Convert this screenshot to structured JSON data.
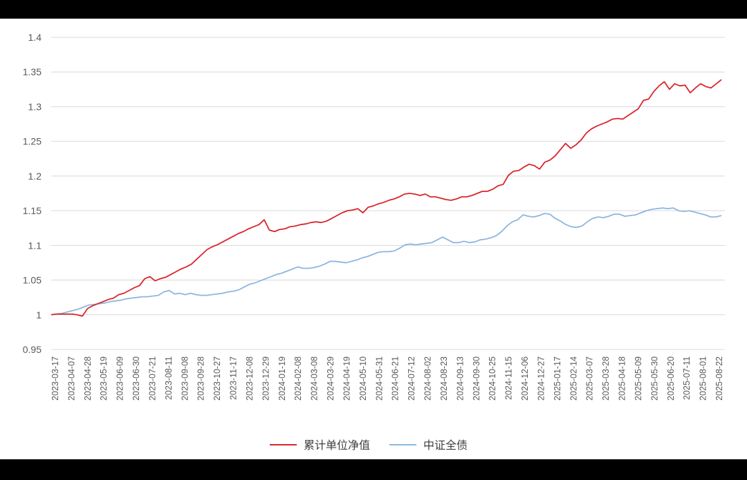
{
  "chart_data": {
    "type": "line",
    "title": "",
    "xlabel": "",
    "ylabel": "",
    "ylim": [
      0.95,
      1.4
    ],
    "y_ticks": [
      "1.4",
      "1.35",
      "1.3",
      "1.25",
      "1.2",
      "1.15",
      "1.1",
      "1.05",
      "1",
      "0.95"
    ],
    "grid": true,
    "legend_position": "bottom",
    "x_tick_labels": [
      "2023-03-17",
      "2023-04-07",
      "2023-04-28",
      "2023-05-19",
      "2023-06-09",
      "2023-06-30",
      "2023-07-21",
      "2023-08-11",
      "2023-09-08",
      "2023-09-28",
      "2023-10-27",
      "2023-11-17",
      "2023-12-08",
      "2023-12-29",
      "2024-01-19",
      "2024-02-08",
      "2024-03-08",
      "2024-03-29",
      "2024-04-19",
      "2024-05-10",
      "2024-05-31",
      "2024-06-21",
      "2024-07-12",
      "2024-08-02",
      "2024-08-23",
      "2024-09-13",
      "2024-09-30",
      "2024-10-25",
      "2024-11-15",
      "2024-12-06",
      "2024-12-27",
      "2025-01-17",
      "2025-02-14",
      "2025-03-07",
      "2025-03-28",
      "2025-04-18",
      "2025-05-09",
      "2025-05-30",
      "2025-06-20",
      "2025-07-11",
      "2025-08-01",
      "2025-08-22"
    ],
    "series": [
      {
        "name": "累计单位净值",
        "color": "#d9252c",
        "values": [
          1.0,
          1.001,
          1.001,
          1.001,
          1.001,
          1.0,
          0.998,
          1.009,
          1.013,
          1.016,
          1.019,
          1.022,
          1.024,
          1.029,
          1.031,
          1.035,
          1.039,
          1.042,
          1.052,
          1.055,
          1.049,
          1.052,
          1.054,
          1.058,
          1.062,
          1.066,
          1.069,
          1.073,
          1.08,
          1.087,
          1.094,
          1.098,
          1.101,
          1.105,
          1.109,
          1.113,
          1.117,
          1.12,
          1.124,
          1.127,
          1.13,
          1.137,
          1.122,
          1.12,
          1.123,
          1.124,
          1.127,
          1.128,
          1.13,
          1.131,
          1.133,
          1.134,
          1.133,
          1.135,
          1.139,
          1.143,
          1.147,
          1.15,
          1.151,
          1.153,
          1.147,
          1.155,
          1.157,
          1.16,
          1.162,
          1.165,
          1.167,
          1.17,
          1.174,
          1.175,
          1.174,
          1.172,
          1.174,
          1.17,
          1.17,
          1.168,
          1.166,
          1.165,
          1.167,
          1.17,
          1.17,
          1.172,
          1.175,
          1.178,
          1.178,
          1.181,
          1.186,
          1.188,
          1.201,
          1.207,
          1.208,
          1.213,
          1.217,
          1.215,
          1.21,
          1.22,
          1.223,
          1.229,
          1.238,
          1.247,
          1.24,
          1.245,
          1.252,
          1.262,
          1.268,
          1.272,
          1.275,
          1.278,
          1.282,
          1.283,
          1.282,
          1.287,
          1.292,
          1.297,
          1.309,
          1.311,
          1.322,
          1.33,
          1.336,
          1.325,
          1.333,
          1.33,
          1.331,
          1.32,
          1.327,
          1.333,
          1.329,
          1.327,
          1.333,
          1.339
        ]
      },
      {
        "name": "中证全债",
        "color": "#8cb6df",
        "values": [
          1.0,
          1.001,
          1.002,
          1.004,
          1.006,
          1.008,
          1.011,
          1.014,
          1.015,
          1.016,
          1.017,
          1.019,
          1.02,
          1.021,
          1.023,
          1.024,
          1.025,
          1.026,
          1.026,
          1.027,
          1.028,
          1.033,
          1.035,
          1.03,
          1.031,
          1.029,
          1.031,
          1.029,
          1.028,
          1.028,
          1.029,
          1.03,
          1.031,
          1.033,
          1.034,
          1.036,
          1.04,
          1.044,
          1.046,
          1.049,
          1.052,
          1.055,
          1.058,
          1.06,
          1.063,
          1.066,
          1.069,
          1.067,
          1.067,
          1.068,
          1.07,
          1.073,
          1.077,
          1.077,
          1.076,
          1.075,
          1.077,
          1.079,
          1.082,
          1.084,
          1.087,
          1.09,
          1.091,
          1.091,
          1.092,
          1.096,
          1.101,
          1.102,
          1.101,
          1.102,
          1.103,
          1.104,
          1.108,
          1.112,
          1.108,
          1.104,
          1.104,
          1.106,
          1.104,
          1.105,
          1.108,
          1.109,
          1.111,
          1.114,
          1.12,
          1.128,
          1.134,
          1.137,
          1.144,
          1.142,
          1.141,
          1.143,
          1.146,
          1.145,
          1.139,
          1.135,
          1.13,
          1.127,
          1.126,
          1.128,
          1.134,
          1.139,
          1.141,
          1.14,
          1.142,
          1.145,
          1.145,
          1.142,
          1.143,
          1.144,
          1.147,
          1.15,
          1.152,
          1.153,
          1.154,
          1.153,
          1.154,
          1.15,
          1.149,
          1.15,
          1.148,
          1.146,
          1.144,
          1.141,
          1.141,
          1.143
        ]
      }
    ]
  }
}
